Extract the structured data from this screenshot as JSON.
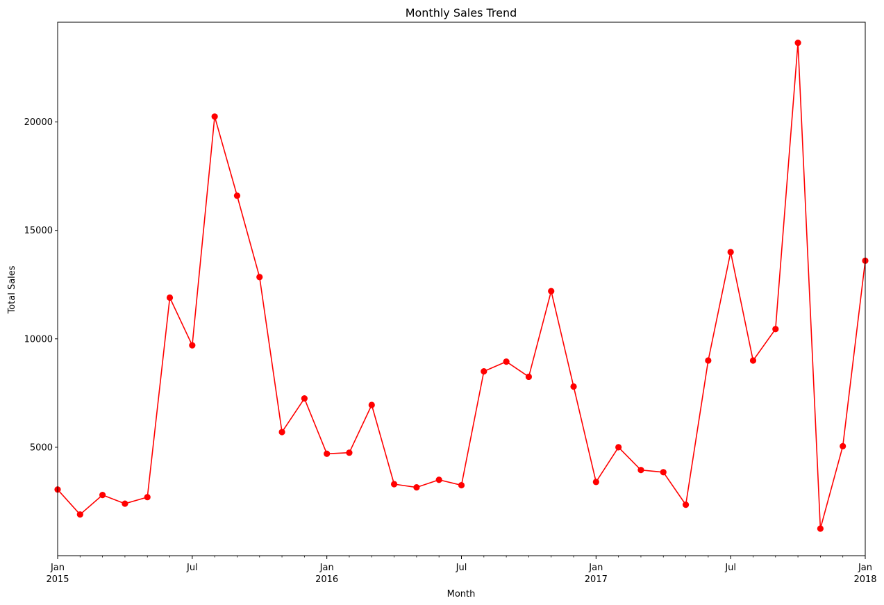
{
  "chart_data": {
    "type": "line",
    "title": "Monthly Sales Trend",
    "xlabel": "Month",
    "ylabel": "Total Sales",
    "grid": false,
    "marker": "circle",
    "colors": {
      "line": "#ff0000",
      "marker": "#ff0000",
      "axes": "#000000"
    },
    "xlim": [
      "2015-01",
      "2018-01"
    ],
    "ylim": [
      0,
      24600
    ],
    "x_ticks": [
      {
        "date": "2015-01",
        "label": "Jan",
        "sublabel": "2015"
      },
      {
        "date": "2015-07",
        "label": "Jul",
        "sublabel": ""
      },
      {
        "date": "2016-01",
        "label": "Jan",
        "sublabel": "2016"
      },
      {
        "date": "2016-07",
        "label": "Jul",
        "sublabel": ""
      },
      {
        "date": "2017-01",
        "label": "Jan",
        "sublabel": "2017"
      },
      {
        "date": "2017-07",
        "label": "Jul",
        "sublabel": ""
      },
      {
        "date": "2018-01",
        "label": "Jan",
        "sublabel": "2018"
      }
    ],
    "y_ticks": [
      5000,
      10000,
      15000,
      20000
    ],
    "series": [
      {
        "x": [
          "2015-01",
          "2015-02",
          "2015-03",
          "2015-04",
          "2015-05",
          "2015-06",
          "2015-07",
          "2015-08",
          "2015-09",
          "2015-10",
          "2015-11",
          "2015-12",
          "2016-01",
          "2016-02",
          "2016-03",
          "2016-04",
          "2016-05",
          "2016-06",
          "2016-07",
          "2016-08",
          "2016-09",
          "2016-10",
          "2016-11",
          "2016-12",
          "2017-01",
          "2017-02",
          "2017-03",
          "2017-04",
          "2017-05",
          "2017-06",
          "2017-07",
          "2017-08",
          "2017-09",
          "2017-10",
          "2017-11",
          "2017-12",
          "2018-01"
        ],
        "values": [
          3050,
          1900,
          2800,
          2400,
          2700,
          11900,
          9700,
          20250,
          16600,
          12850,
          5700,
          7250,
          4700,
          4750,
          6950,
          3300,
          3150,
          3500,
          3250,
          8500,
          8950,
          8250,
          12200,
          7800,
          3400,
          5000,
          3950,
          3850,
          2350,
          9000,
          14000,
          9000,
          10450,
          23650,
          1250,
          5050,
          13600
        ]
      }
    ]
  }
}
